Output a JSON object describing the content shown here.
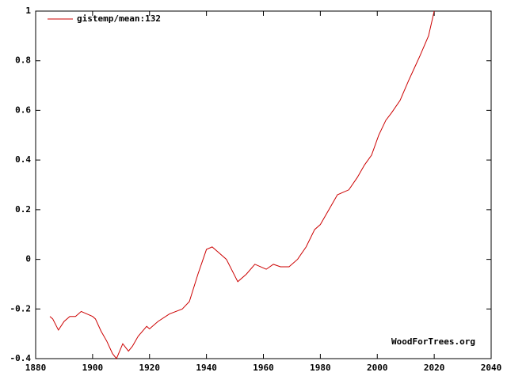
{
  "chart_data": {
    "type": "line",
    "series": [
      {
        "name": "gistemp/mean:132",
        "color": "#cc0000",
        "x": [
          1885,
          1886,
          1888,
          1890,
          1892,
          1894,
          1896,
          1898,
          1900,
          1901,
          1903,
          1905,
          1907,
          1908.4,
          1909.5,
          1910.6,
          1912.6,
          1914,
          1916,
          1919,
          1920,
          1923,
          1927,
          1931.5,
          1934,
          1937,
          1940,
          1942,
          1944,
          1947,
          1951,
          1954,
          1957,
          1961,
          1963.5,
          1966,
          1969,
          1972,
          1975,
          1978,
          1980,
          1983,
          1986,
          1990,
          1993,
          1995.5,
          1998,
          2000.5,
          2003,
          2005,
          2008,
          2011,
          2013,
          2015,
          2018,
          2020
        ],
        "values": [
          -0.23,
          -0.24,
          -0.285,
          -0.25,
          -0.23,
          -0.23,
          -0.21,
          -0.22,
          -0.23,
          -0.24,
          -0.29,
          -0.33,
          -0.38,
          -0.4,
          -0.37,
          -0.34,
          -0.37,
          -0.35,
          -0.31,
          -0.27,
          -0.28,
          -0.25,
          -0.22,
          -0.2,
          -0.17,
          -0.06,
          0.04,
          0.05,
          0.03,
          0.0,
          -0.09,
          -0.06,
          -0.02,
          -0.04,
          -0.02,
          -0.03,
          -0.03,
          0.0,
          0.05,
          0.12,
          0.14,
          0.2,
          0.26,
          0.28,
          0.33,
          0.38,
          0.42,
          0.5,
          0.56,
          0.59,
          0.64,
          0.72,
          0.77,
          0.82,
          0.9,
          1.0
        ]
      }
    ],
    "xlim": [
      1880,
      2040
    ],
    "xticks": [
      1880,
      1900,
      1920,
      1940,
      1960,
      1980,
      2000,
      2020,
      2040
    ],
    "ylim": [
      -0.4,
      1
    ],
    "yticks": [
      -0.4,
      -0.2,
      0,
      0.2,
      0.4,
      0.6,
      0.8,
      1
    ],
    "legend": "top-left",
    "annotation": "WoodForTrees.org"
  }
}
